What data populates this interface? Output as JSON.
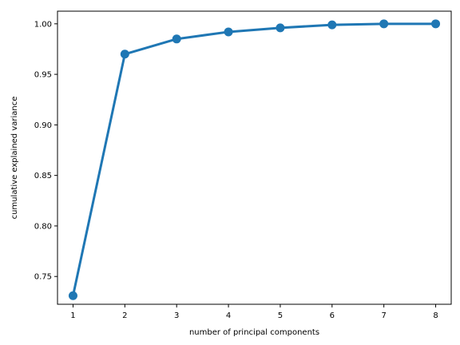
{
  "chart_data": {
    "type": "line",
    "title": "",
    "xlabel": "number of  principal components",
    "ylabel": "cumulative explained variance",
    "x": [
      1,
      2,
      3,
      4,
      5,
      6,
      7,
      8
    ],
    "series": [
      {
        "values": [
          0.731,
          0.97,
          0.985,
          0.992,
          0.996,
          0.999,
          1.0,
          1.0
        ]
      }
    ],
    "xlim": [
      0.7,
      8.3
    ],
    "ylim": [
      0.7225,
      1.0125
    ],
    "xticks": [
      1,
      2,
      3,
      4,
      5,
      6,
      7,
      8
    ],
    "xtick_labels": [
      "1",
      "2",
      "3",
      "4",
      "5",
      "6",
      "7",
      "8"
    ],
    "yticks": [
      0.75,
      0.8,
      0.85,
      0.9,
      0.95,
      1.0
    ],
    "ytick_labels": [
      "0.75",
      "0.80",
      "0.85",
      "0.90",
      "0.95",
      "1.00"
    ],
    "grid": false,
    "legend": "none",
    "colors": {
      "line": "#1f77b4",
      "axes": "#000000"
    }
  }
}
